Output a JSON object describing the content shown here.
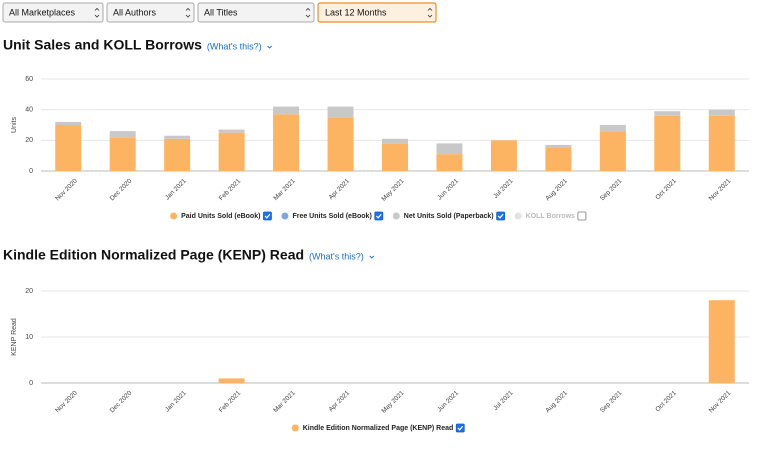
{
  "filters": [
    "All Marketplaces",
    "All Authors",
    "All Titles",
    "Last 12 Months"
  ],
  "chart_data": [
    {
      "type": "bar",
      "title": "Unit Sales and KOLL Borrows",
      "link": "(What's this?)",
      "ylabel": "Units",
      "categories": [
        "Nov 2020",
        "Dec 2020",
        "Jan 2021",
        "Feb 2021",
        "Mar 2021",
        "Apr 2021",
        "May 2021",
        "Jun 2021",
        "Jul 2021",
        "Aug 2021",
        "Sep 2021",
        "Oct 2021",
        "Nov 2021"
      ],
      "ylim": [
        0,
        60
      ],
      "yticks": [
        0,
        20,
        40,
        60
      ],
      "grid": true,
      "stacked": true,
      "series": [
        {
          "name": "Paid Units Sold (eBook)",
          "color": "#fdb462",
          "checked": true,
          "values": [
            30,
            22,
            21,
            25,
            37,
            35,
            18,
            11,
            20,
            15,
            26,
            36,
            36
          ]
        },
        {
          "name": "Free Units Sold (eBook)",
          "color": "#7fa7dc",
          "checked": true,
          "values": [
            0,
            0,
            0,
            0,
            0,
            0,
            0,
            0,
            0,
            0,
            0,
            0,
            0
          ]
        },
        {
          "name": "Net Units Sold (Paperback)",
          "color": "#c8c8c8",
          "checked": true,
          "values": [
            2,
            4,
            2,
            2,
            5,
            7,
            3,
            7,
            0,
            2,
            4,
            3,
            4
          ]
        },
        {
          "name": "KOLL Borrows",
          "color": "#e3e3e3",
          "checked": false,
          "values": [
            null,
            null,
            null,
            null,
            null,
            null,
            null,
            null,
            null,
            null,
            null,
            null,
            null
          ]
        }
      ]
    },
    {
      "type": "bar",
      "title": "Kindle Edition Normalized Page (KENP) Read",
      "link": "(What's this?)",
      "ylabel": "KENP Read",
      "categories": [
        "Nov 2020",
        "Dec 2020",
        "Jan 2021",
        "Feb 2021",
        "Mar 2021",
        "Apr 2021",
        "May 2021",
        "Jun 2021",
        "Jul 2021",
        "Aug 2021",
        "Sep 2021",
        "Oct 2021",
        "Nov 2021"
      ],
      "ylim": [
        0,
        20
      ],
      "yticks": [
        0,
        10,
        20
      ],
      "grid": true,
      "stacked": true,
      "series": [
        {
          "name": "Kindle Edition Normalized Page (KENP) Read",
          "color": "#fdb462",
          "checked": true,
          "values": [
            0,
            0,
            0,
            1,
            0,
            0,
            0,
            0,
            0,
            0,
            0,
            0,
            18
          ]
        }
      ]
    }
  ]
}
